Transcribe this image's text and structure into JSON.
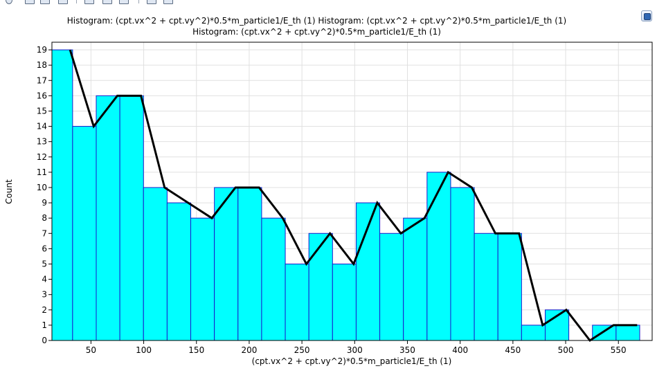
{
  "titles": [
    "Histogram: (cpt.vx^2 + cpt.vy^2)*0.5*m_particle1/E_th (1)  Histogram: (cpt.vx^2 + cpt.vy^2)*0.5*m_particle1/E_th (1)",
    "Histogram: (cpt.vx^2 + cpt.vy^2)*0.5*m_particle1/E_th (1)"
  ],
  "toolbar": {
    "icons": [
      "zoom-icon",
      "pan-icon",
      "zoom-box-icon",
      "copy-icon",
      "image-icon",
      "grid-icon",
      "export-icon",
      "print-icon"
    ]
  },
  "chart_data": {
    "type": "bar",
    "xlabel": "(cpt.vx^2 + cpt.vy^2)*0.5*m_particle1/E_th (1)",
    "ylabel": "Count",
    "xlim": [
      13,
      582
    ],
    "ylim": [
      0,
      19.5
    ],
    "xticks": [
      50,
      100,
      150,
      200,
      250,
      300,
      350,
      400,
      450,
      500,
      550
    ],
    "yticks": [
      0,
      1,
      2,
      3,
      4,
      5,
      6,
      7,
      8,
      9,
      10,
      11,
      12,
      13,
      14,
      15,
      16,
      17,
      18,
      19
    ],
    "grid": true,
    "bins": {
      "centers": [
        21.4,
        43.8,
        66.2,
        88.6,
        111.0,
        133.4,
        155.8,
        178.2,
        200.6,
        223.0,
        245.4,
        267.8,
        290.2,
        312.6,
        335.0,
        357.4,
        379.8,
        402.2,
        424.6,
        447.0,
        469.4,
        491.8,
        514.2,
        536.6,
        559.0,
        581.4
      ],
      "width": 22.4,
      "counts": [
        19,
        14,
        16,
        16,
        10,
        9,
        8,
        10,
        10,
        8,
        5,
        7,
        5,
        9,
        7,
        8,
        11,
        10,
        7,
        7,
        1,
        2,
        0,
        1,
        1,
        0
      ]
    },
    "line": {
      "x": [
        30.2,
        52.6,
        75.0,
        97.4,
        119.8,
        142.2,
        164.6,
        187.0,
        209.4,
        231.8,
        254.2,
        276.6,
        299.0,
        321.4,
        343.8,
        366.2,
        388.6,
        411.0,
        433.4,
        455.8,
        478.2,
        500.6,
        523.0,
        545.4,
        567.8
      ],
      "y": [
        19,
        14,
        16,
        16,
        10,
        9,
        8,
        10,
        10,
        8,
        5,
        7,
        5,
        9,
        7,
        8,
        11,
        10,
        7,
        7,
        1,
        2,
        0,
        1,
        1
      ]
    },
    "colors": {
      "bar_fill": "#00ffff",
      "bar_edge": "#1a1acc",
      "line": "#000000",
      "grid": "#e0e0e0"
    }
  }
}
